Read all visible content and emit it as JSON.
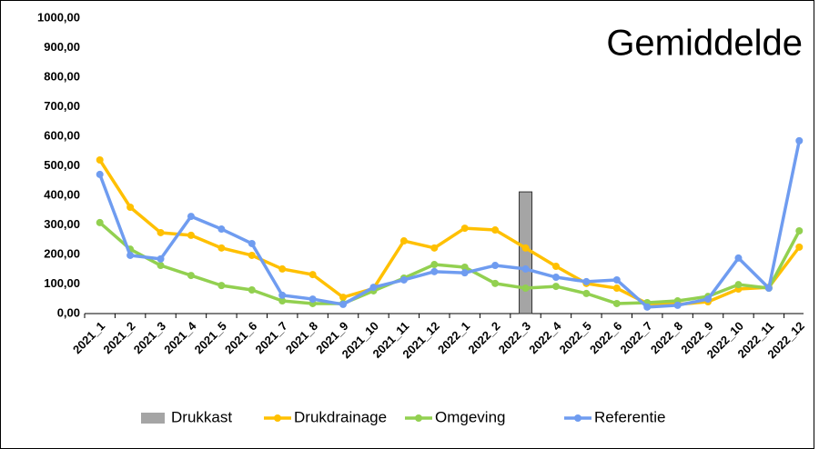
{
  "chart_data": {
    "type": "line",
    "title": "Gemiddelde",
    "categories": [
      "2021_1",
      "2021_2",
      "2021_3",
      "2021_4",
      "2021_5",
      "2021_6",
      "2021_7",
      "2021_8",
      "2021_9",
      "2021_10",
      "2021_11",
      "2021_12",
      "2022_1",
      "2022_2",
      "2022_3",
      "2022_4",
      "2022_5",
      "2022_6",
      "2022_7",
      "2022_8",
      "2022_9",
      "2022_10",
      "2022_11",
      "2022_12"
    ],
    "series": [
      {
        "name": "Drukkast",
        "type": "bar",
        "color": "#a5a5a5",
        "values": [
          null,
          null,
          null,
          null,
          null,
          null,
          null,
          null,
          null,
          null,
          null,
          null,
          null,
          null,
          412,
          null,
          null,
          null,
          null,
          null,
          null,
          null,
          null,
          null
        ]
      },
      {
        "name": "Drukdrainage",
        "type": "line",
        "color": "#ffc000",
        "values": [
          520,
          360,
          274,
          265,
          222,
          197,
          151,
          132,
          55,
          85,
          246,
          222,
          289,
          283,
          222,
          160,
          102,
          86,
          34,
          31,
          40,
          83,
          89,
          225
        ]
      },
      {
        "name": "Omgeving",
        "type": "line",
        "color": "#92d050",
        "values": [
          308,
          218,
          163,
          129,
          95,
          80,
          43,
          34,
          34,
          77,
          120,
          166,
          157,
          102,
          86,
          92,
          68,
          34,
          37,
          43,
          58,
          98,
          86,
          280
        ]
      },
      {
        "name": "Referentie",
        "type": "line",
        "color": "#6f9cf0",
        "values": [
          471,
          197,
          185,
          329,
          286,
          237,
          62,
          49,
          31,
          89,
          114,
          142,
          138,
          163,
          151,
          123,
          108,
          114,
          22,
          28,
          49,
          188,
          86,
          585
        ]
      }
    ],
    "ylim": [
      0,
      1000
    ],
    "yticks": [
      {
        "value": 0,
        "label": "0,00"
      },
      {
        "value": 100,
        "label": "100,00"
      },
      {
        "value": 200,
        "label": "200,00"
      },
      {
        "value": 300,
        "label": "300,00"
      },
      {
        "value": 400,
        "label": "400,00"
      },
      {
        "value": 500,
        "label": "500,00"
      },
      {
        "value": 600,
        "label": "600,00"
      },
      {
        "value": 700,
        "label": "700,00"
      },
      {
        "value": 800,
        "label": "800,00"
      },
      {
        "value": 900,
        "label": "900,00"
      },
      {
        "value": 1000,
        "label": "1000,00"
      }
    ],
    "grid": false,
    "legend": "bottom"
  }
}
